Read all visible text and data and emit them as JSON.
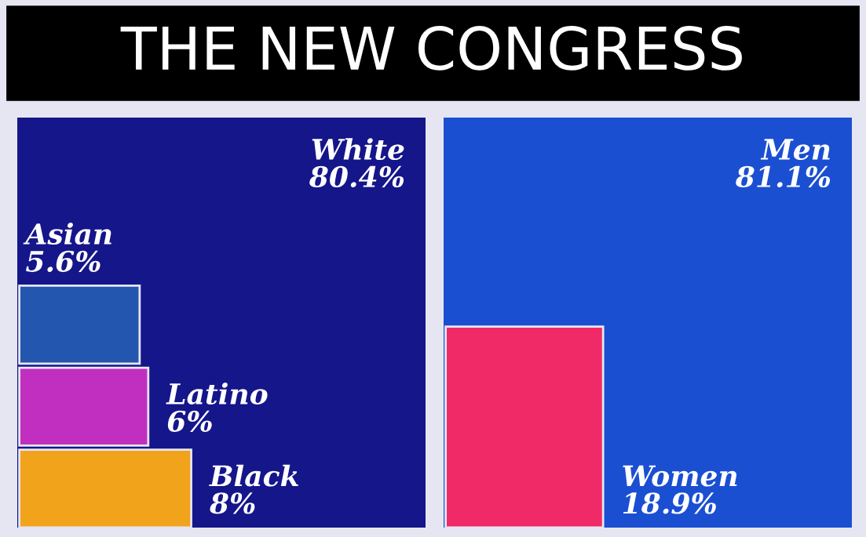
{
  "chart_data": [
    {
      "type": "other",
      "title": "THE NEW CONGRESS",
      "categories": [
        "White",
        "Asian",
        "Latino",
        "Black"
      ],
      "values": [
        80.4,
        5.6,
        6,
        8
      ],
      "value_labels": [
        "80.4%",
        "5.6%",
        "6%",
        "8%"
      ],
      "colors": [
        "#15168a",
        "#2356ae",
        "#c12fc0",
        "#f2a31c"
      ]
    },
    {
      "type": "other",
      "categories": [
        "Men",
        "Women"
      ],
      "values": [
        81.1,
        18.9
      ],
      "value_labels": [
        "81.1%",
        "18.9%"
      ],
      "colors": [
        "#1b4fd2",
        "#f02a66"
      ]
    }
  ]
}
